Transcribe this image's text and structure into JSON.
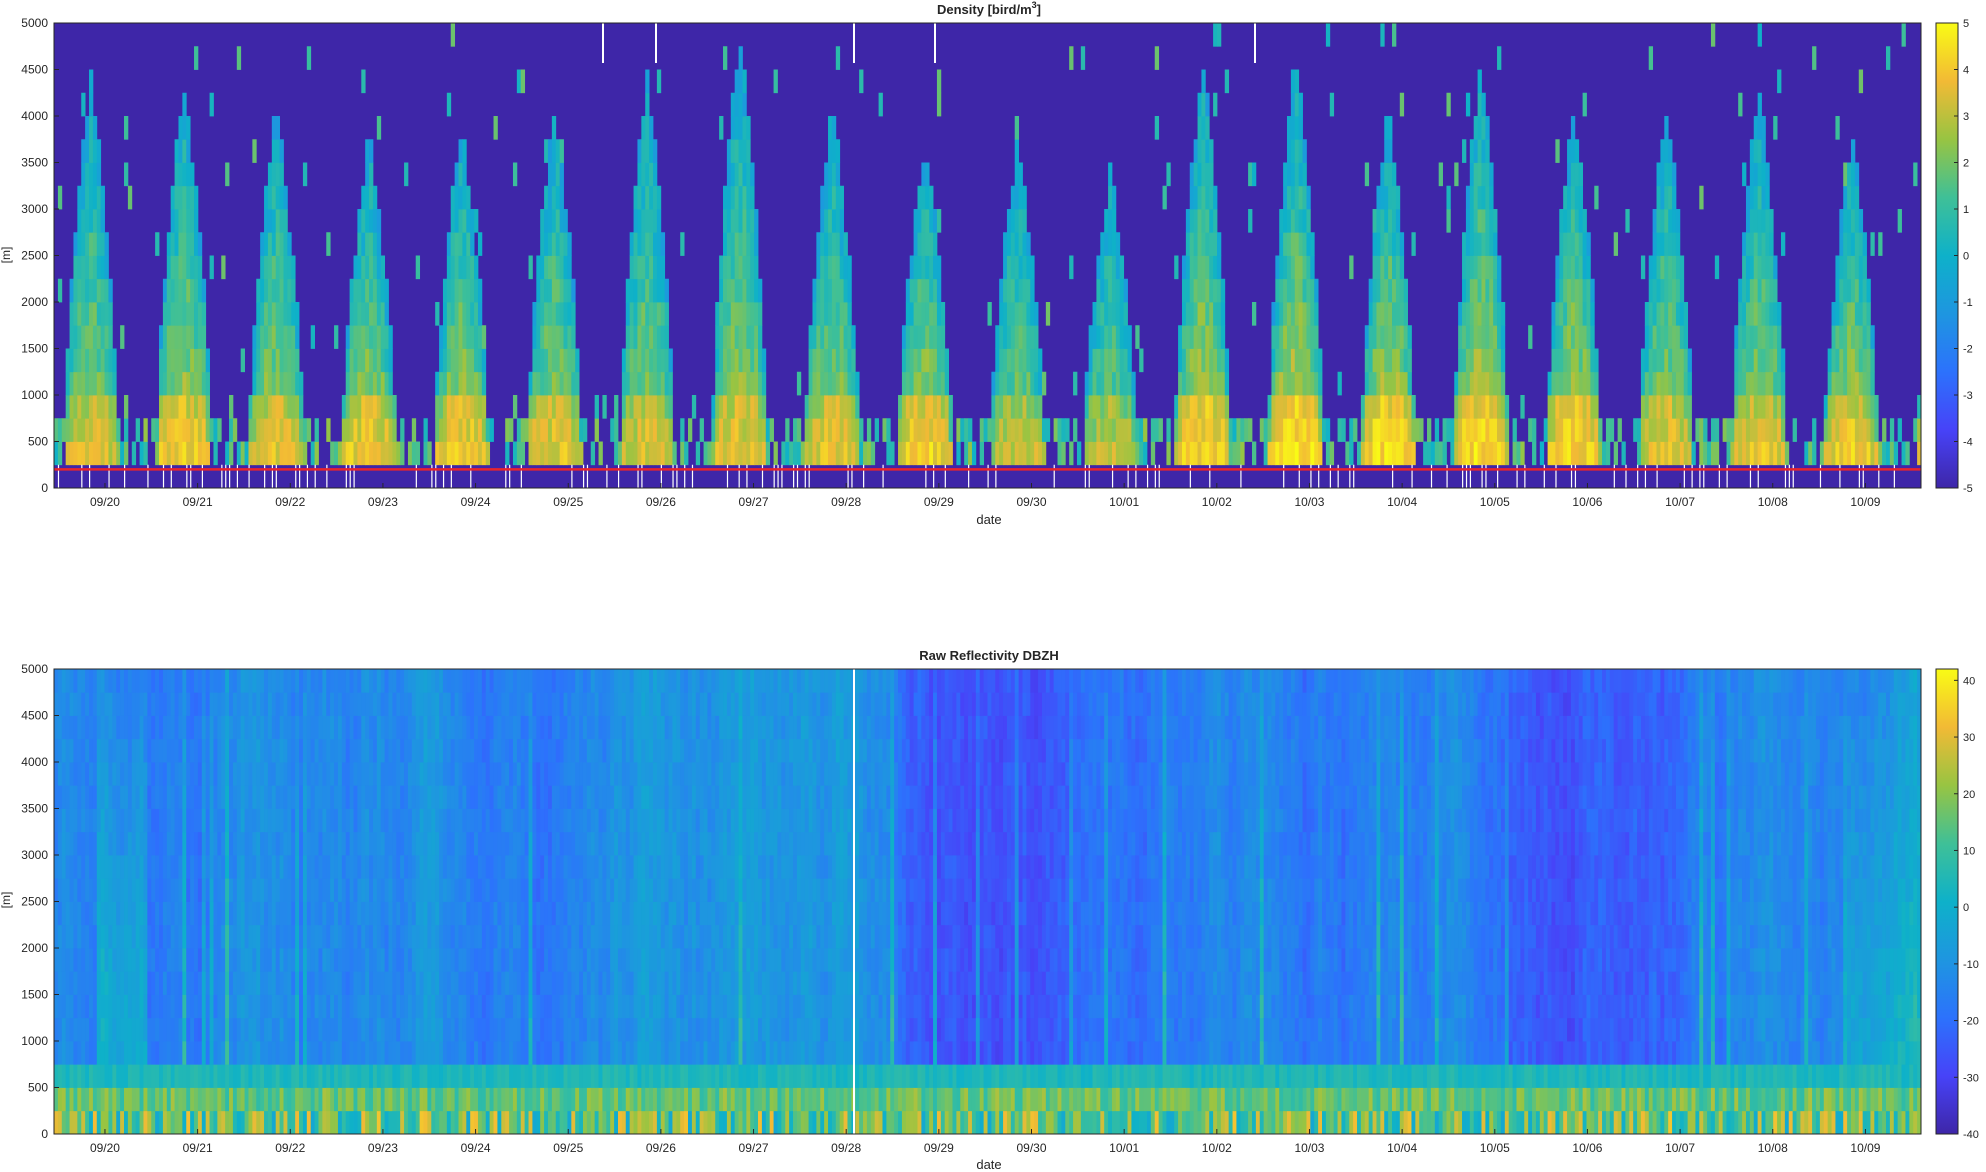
{
  "chart_data": [
    {
      "type": "heatmap",
      "title": "Density [bird/m3]",
      "title_main": "Density [bird/m",
      "title_sup": "3",
      "title_end": "]",
      "xlabel": "date",
      "ylabel": "[m]",
      "x_ticks": [
        "09/20",
        "09/21",
        "09/22",
        "09/23",
        "09/24",
        "09/25",
        "09/26",
        "09/27",
        "09/28",
        "09/29",
        "09/30",
        "10/01",
        "10/02",
        "10/03",
        "10/04",
        "10/05",
        "10/06",
        "10/07",
        "10/08",
        "10/09"
      ],
      "y_ticks": [
        0,
        500,
        1000,
        1500,
        2000,
        2500,
        3000,
        3500,
        4000,
        4500,
        5000
      ],
      "ylim": [
        0,
        5000
      ],
      "colorbar": {
        "ticks": [
          -5,
          -4,
          -3,
          -2,
          -1,
          0,
          1,
          2,
          3,
          4,
          5
        ],
        "clim": [
          -5,
          5
        ],
        "colormap": "parula"
      },
      "reference_line": {
        "value": 200,
        "color": "#e8242c"
      },
      "nights": [
        {
          "date": "09/20",
          "intensity": 0.75,
          "height": 4300
        },
        {
          "date": "09/21",
          "intensity": 0.85,
          "height": 4300
        },
        {
          "date": "09/22",
          "intensity": 0.8,
          "height": 4000
        },
        {
          "date": "09/23",
          "intensity": 0.85,
          "height": 3700
        },
        {
          "date": "09/24",
          "intensity": 0.85,
          "height": 3800
        },
        {
          "date": "09/25",
          "intensity": 0.8,
          "height": 4000
        },
        {
          "date": "09/26",
          "intensity": 0.75,
          "height": 4300
        },
        {
          "date": "09/27",
          "intensity": 0.78,
          "height": 4800
        },
        {
          "date": "09/28",
          "intensity": 0.8,
          "height": 4000
        },
        {
          "date": "09/29",
          "intensity": 0.88,
          "height": 3600
        },
        {
          "date": "09/30",
          "intensity": 0.7,
          "height": 3600
        },
        {
          "date": "10/01",
          "intensity": 0.68,
          "height": 3300
        },
        {
          "date": "10/02",
          "intensity": 0.9,
          "height": 4500
        },
        {
          "date": "10/03",
          "intensity": 0.95,
          "height": 4600
        },
        {
          "date": "10/04",
          "intensity": 0.95,
          "height": 4000
        },
        {
          "date": "10/05",
          "intensity": 0.92,
          "height": 4500
        },
        {
          "date": "10/06",
          "intensity": 0.9,
          "height": 4000
        },
        {
          "date": "10/07",
          "intensity": 0.78,
          "height": 4000
        },
        {
          "date": "10/08",
          "intensity": 0.8,
          "height": 4200
        },
        {
          "date": "10/09",
          "intensity": 0.85,
          "height": 3700
        }
      ]
    },
    {
      "type": "heatmap",
      "title": "Raw Reflectivity DBZH",
      "xlabel": "date",
      "ylabel": "[m]",
      "x_ticks": [
        "09/20",
        "09/21",
        "09/22",
        "09/23",
        "09/24",
        "09/25",
        "09/26",
        "09/27",
        "09/28",
        "09/29",
        "09/30",
        "10/01",
        "10/02",
        "10/03",
        "10/04",
        "10/05",
        "10/06",
        "10/07",
        "10/08",
        "10/09"
      ],
      "y_ticks": [
        0,
        500,
        1000,
        1500,
        2000,
        2500,
        3000,
        3500,
        4000,
        4500,
        5000
      ],
      "ylim": [
        0,
        5000
      ],
      "colorbar": {
        "ticks": [
          -40,
          -30,
          -20,
          -10,
          0,
          10,
          20,
          30,
          40
        ],
        "clim": [
          -40,
          42
        ],
        "colormap": "parula"
      }
    }
  ]
}
